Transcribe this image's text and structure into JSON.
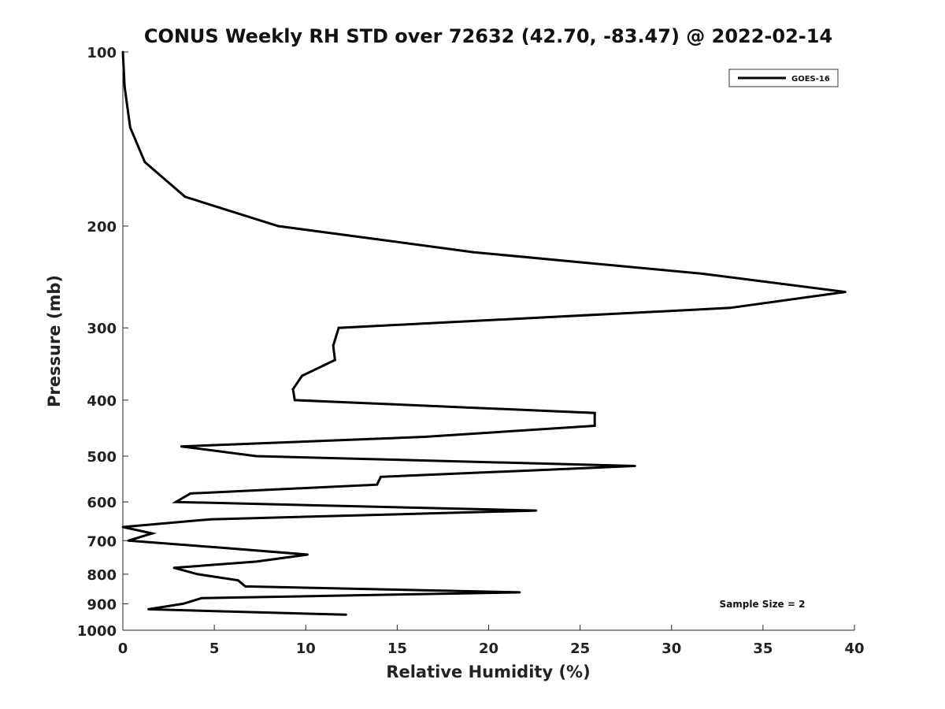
{
  "chart_data": {
    "type": "line",
    "title": "CONUS Weekly RH STD over 72632 (42.70, -83.47) @ 2022-02-14",
    "xlabel": "Relative Humidity (%)",
    "ylabel": "Pressure (mb)",
    "xlim": [
      0,
      40
    ],
    "ylim": [
      100,
      1000
    ],
    "yscale": "log",
    "yreversed": true,
    "x_ticks": [
      0,
      5,
      10,
      15,
      20,
      25,
      30,
      35,
      40
    ],
    "y_ticks": [
      100,
      200,
      300,
      400,
      500,
      600,
      700,
      800,
      900,
      1000
    ],
    "legend": {
      "position": "top-right",
      "entries": [
        "GOES-16"
      ]
    },
    "annotation": "Sample Size = 2",
    "series": [
      {
        "name": "GOES-16",
        "color": "#000000",
        "points": [
          [
            0.0,
            100
          ],
          [
            0.1,
            115
          ],
          [
            0.4,
            135
          ],
          [
            1.2,
            155
          ],
          [
            3.4,
            178
          ],
          [
            8.5,
            200
          ],
          [
            19.2,
            222
          ],
          [
            31.8,
            242
          ],
          [
            39.5,
            260
          ],
          [
            33.2,
            277
          ],
          [
            11.8,
            300
          ],
          [
            11.5,
            322
          ],
          [
            11.6,
            341
          ],
          [
            9.8,
            363
          ],
          [
            9.3,
            383
          ],
          [
            9.4,
            400
          ],
          [
            25.8,
            421
          ],
          [
            25.8,
            443
          ],
          [
            16.5,
            463
          ],
          [
            3.2,
            481
          ],
          [
            7.3,
            500
          ],
          [
            28.0,
            520
          ],
          [
            14.1,
            543
          ],
          [
            13.9,
            560
          ],
          [
            3.7,
            580
          ],
          [
            2.9,
            600
          ],
          [
            22.6,
            621
          ],
          [
            4.8,
            643
          ],
          [
            0.0,
            663
          ],
          [
            1.6,
            680
          ],
          [
            0.3,
            700
          ],
          [
            5.4,
            720
          ],
          [
            10.1,
            740
          ],
          [
            7.3,
            761
          ],
          [
            2.8,
            780
          ],
          [
            4.1,
            800
          ],
          [
            6.3,
            820
          ],
          [
            6.7,
            840
          ],
          [
            21.7,
            860
          ],
          [
            4.3,
            880
          ],
          [
            3.3,
            900
          ],
          [
            1.4,
            920
          ],
          [
            12.2,
            940
          ]
        ]
      }
    ]
  }
}
